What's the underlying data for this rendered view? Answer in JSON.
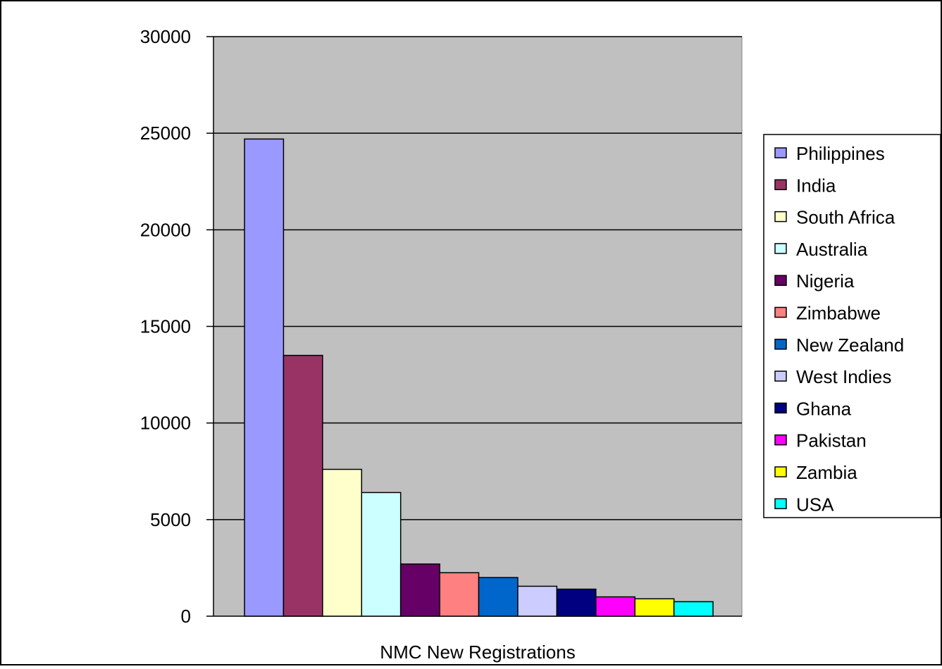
{
  "chart_data": {
    "type": "bar",
    "title": "",
    "xlabel": "NMC New Registrations",
    "ylabel": "",
    "ylim": [
      0,
      30000
    ],
    "yticks": [
      0,
      5000,
      10000,
      15000,
      20000,
      25000,
      30000
    ],
    "grid": true,
    "legend_position": "right",
    "series": [
      {
        "name": "Philippines",
        "value": 24700,
        "color": "#9999ff"
      },
      {
        "name": "India",
        "value": 13500,
        "color": "#993366"
      },
      {
        "name": "South Africa",
        "value": 7600,
        "color": "#ffffcc"
      },
      {
        "name": "Australia",
        "value": 6400,
        "color": "#ccffff"
      },
      {
        "name": "Nigeria",
        "value": 2700,
        "color": "#660066"
      },
      {
        "name": "Zimbabwe",
        "value": 2250,
        "color": "#ff8080"
      },
      {
        "name": "New Zealand",
        "value": 2000,
        "color": "#0066cc"
      },
      {
        "name": "West Indies",
        "value": 1550,
        "color": "#ccccff"
      },
      {
        "name": "Ghana",
        "value": 1400,
        "color": "#000080"
      },
      {
        "name": "Pakistan",
        "value": 1000,
        "color": "#ff00ff"
      },
      {
        "name": "Zambia",
        "value": 900,
        "color": "#ffff00"
      },
      {
        "name": "USA",
        "value": 750,
        "color": "#00ffff"
      }
    ],
    "plot_background": "#c0c0c0"
  }
}
